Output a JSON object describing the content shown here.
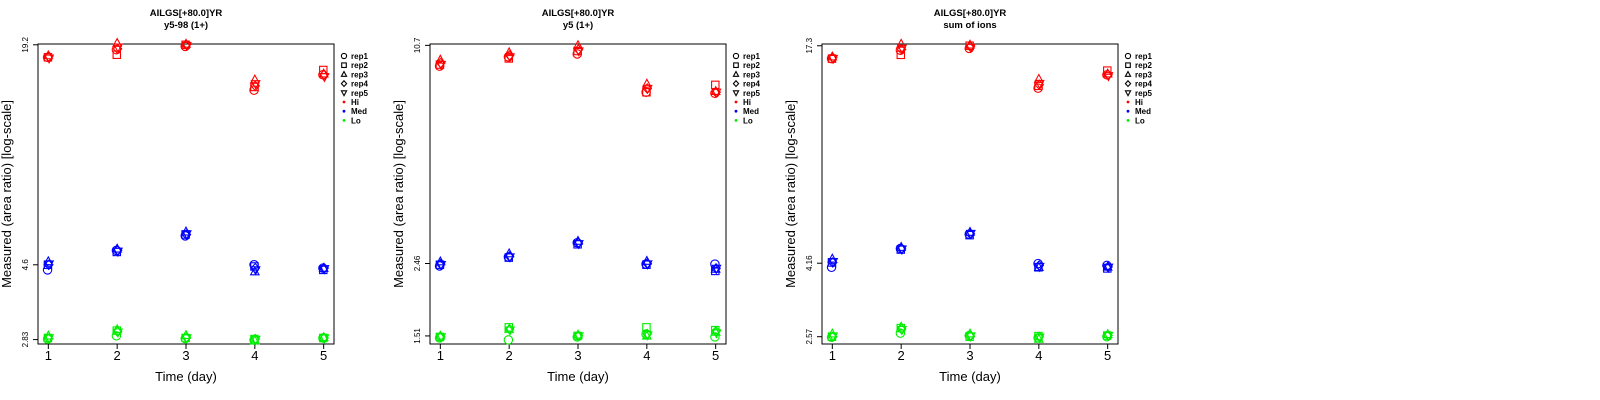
{
  "chart_data": [
    {
      "type": "scatter",
      "title": "AILGS[+80.0]YR",
      "subtitle": "y5-98 (1+)",
      "xlabel": "Time (day)",
      "ylabel": "Measured (area ratio) [log-scale]",
      "yscale": "log",
      "x": [
        1,
        2,
        3,
        4,
        5
      ],
      "xtick_labels": [
        "1",
        "2",
        "3",
        "4",
        "5"
      ],
      "ytick_labels": [
        "2.83",
        "4.6",
        "19.2"
      ],
      "ytick_values": [
        2.83,
        4.6,
        19.2
      ],
      "ylim": [
        2.75,
        19.3
      ],
      "legend": [
        "rep1",
        "rep2",
        "rep3",
        "rep4",
        "rep5",
        "Hi",
        "Med",
        "Lo"
      ],
      "legend_position": "right-outside",
      "colors": {
        "Hi": "#ff0000",
        "Med": "#0000ff",
        "Lo": "#00ee00"
      },
      "series": [
        {
          "level": "Hi",
          "rep": "rep1",
          "values": [
            17.7,
            18.6,
            19.0,
            14.3,
            15.8
          ]
        },
        {
          "level": "Hi",
          "rep": "rep2",
          "values": [
            17.7,
            18.0,
            19.2,
            14.6,
            16.3
          ]
        },
        {
          "level": "Hi",
          "rep": "rep3",
          "values": [
            17.9,
            19.4,
            19.3,
            15.3,
            15.9
          ]
        },
        {
          "level": "Hi",
          "rep": "rep4",
          "values": [
            17.8,
            18.7,
            19.2,
            14.7,
            15.8
          ]
        },
        {
          "level": "Hi",
          "rep": "rep5",
          "values": [
            17.6,
            18.9,
            19.1,
            14.9,
            15.6
          ]
        },
        {
          "level": "Med",
          "rep": "rep1",
          "values": [
            4.45,
            5.05,
            5.55,
            4.6,
            4.5
          ]
        },
        {
          "level": "Med",
          "rep": "rep2",
          "values": [
            4.6,
            5.0,
            5.6,
            4.55,
            4.45
          ]
        },
        {
          "level": "Med",
          "rep": "rep3",
          "values": [
            4.7,
            5.1,
            5.7,
            4.4,
            4.5
          ]
        },
        {
          "level": "Med",
          "rep": "rep4",
          "values": [
            4.6,
            5.05,
            5.6,
            4.5,
            4.5
          ]
        },
        {
          "level": "Med",
          "rep": "rep5",
          "values": [
            4.62,
            5.02,
            5.62,
            4.45,
            4.48
          ]
        },
        {
          "level": "Lo",
          "rep": "rep1",
          "values": [
            2.84,
            2.9,
            2.85,
            2.82,
            2.86
          ]
        },
        {
          "level": "Lo",
          "rep": "rep2",
          "values": [
            2.86,
            3.0,
            2.86,
            2.84,
            2.86
          ]
        },
        {
          "level": "Lo",
          "rep": "rep3",
          "values": [
            2.9,
            3.02,
            2.91,
            2.81,
            2.87
          ]
        },
        {
          "level": "Lo",
          "rep": "rep4",
          "values": [
            2.85,
            2.98,
            2.87,
            2.84,
            2.86
          ]
        },
        {
          "level": "Lo",
          "rep": "rep5",
          "values": [
            2.86,
            2.97,
            2.86,
            2.83,
            2.86
          ]
        }
      ]
    },
    {
      "type": "scatter",
      "title": "AILGS[+80.0]YR",
      "subtitle": "y5 (1+)",
      "xlabel": "Time (day)",
      "ylabel": "Measured (area ratio) [log-scale]",
      "yscale": "log",
      "x": [
        1,
        2,
        3,
        4,
        5
      ],
      "xtick_labels": [
        "1",
        "2",
        "3",
        "4",
        "5"
      ],
      "ytick_labels": [
        "1.51",
        "2.46",
        "10.7"
      ],
      "ytick_values": [
        1.51,
        2.46,
        10.7
      ],
      "ylim": [
        1.43,
        10.8
      ],
      "legend": [
        "rep1",
        "rep2",
        "rep3",
        "rep4",
        "rep5",
        "Hi",
        "Med",
        "Lo"
      ],
      "legend_position": "right-outside",
      "colors": {
        "Hi": "#ff0000",
        "Med": "#0000ff",
        "Lo": "#00ee00"
      },
      "series": [
        {
          "level": "Hi",
          "rep": "rep1",
          "values": [
            9.3,
            9.9,
            10.1,
            7.8,
            7.75
          ]
        },
        {
          "level": "Hi",
          "rep": "rep2",
          "values": [
            9.4,
            9.8,
            10.3,
            7.8,
            8.2
          ]
        },
        {
          "level": "Hi",
          "rep": "rep3",
          "values": [
            9.7,
            10.2,
            10.7,
            8.25,
            7.85
          ]
        },
        {
          "level": "Hi",
          "rep": "rep4",
          "values": [
            9.5,
            10.0,
            10.4,
            8.0,
            7.8
          ]
        },
        {
          "level": "Hi",
          "rep": "rep5",
          "values": [
            9.4,
            9.9,
            10.3,
            8.0,
            7.8
          ]
        },
        {
          "level": "Med",
          "rep": "rep1",
          "values": [
            2.42,
            2.57,
            2.83,
            2.45,
            2.45
          ]
        },
        {
          "level": "Med",
          "rep": "rep2",
          "values": [
            2.44,
            2.56,
            2.8,
            2.44,
            2.34
          ]
        },
        {
          "level": "Med",
          "rep": "rep3",
          "values": [
            2.49,
            2.63,
            2.86,
            2.5,
            2.37
          ]
        },
        {
          "level": "Med",
          "rep": "rep4",
          "values": [
            2.45,
            2.58,
            2.82,
            2.46,
            2.38
          ]
        },
        {
          "level": "Med",
          "rep": "rep5",
          "values": [
            2.44,
            2.57,
            2.81,
            2.45,
            2.38
          ]
        },
        {
          "level": "Lo",
          "rep": "rep1",
          "values": [
            1.49,
            1.47,
            1.5,
            1.53,
            1.5
          ]
        },
        {
          "level": "Lo",
          "rep": "rep2",
          "values": [
            1.5,
            1.6,
            1.51,
            1.6,
            1.57
          ]
        },
        {
          "level": "Lo",
          "rep": "rep3",
          "values": [
            1.51,
            1.58,
            1.52,
            1.51,
            1.55
          ]
        },
        {
          "level": "Lo",
          "rep": "rep4",
          "values": [
            1.5,
            1.58,
            1.51,
            1.53,
            1.56
          ]
        },
        {
          "level": "Lo",
          "rep": "rep5",
          "values": [
            1.5,
            1.57,
            1.51,
            1.52,
            1.54
          ]
        }
      ]
    },
    {
      "type": "scatter",
      "title": "AILGS[+80.0]YR",
      "subtitle": "sum of ions",
      "xlabel": "Time (day)",
      "ylabel": "Measured (area ratio) [log-scale]",
      "yscale": "log",
      "x": [
        1,
        2,
        3,
        4,
        5
      ],
      "xtick_labels": [
        "1",
        "2",
        "3",
        "4",
        "5"
      ],
      "ytick_labels": [
        "2.57",
        "4.16",
        "17.3"
      ],
      "ytick_values": [
        2.57,
        4.16,
        17.3
      ],
      "ylim": [
        2.45,
        17.5
      ],
      "legend": [
        "rep1",
        "rep2",
        "rep3",
        "rep4",
        "rep5",
        "Hi",
        "Med",
        "Lo"
      ],
      "legend_position": "right-outside",
      "colors": {
        "Hi": "#ff0000",
        "Med": "#0000ff",
        "Lo": "#00ee00"
      },
      "series": [
        {
          "level": "Hi",
          "rep": "rep1",
          "values": [
            15.9,
            16.8,
            17.0,
            13.1,
            14.3
          ]
        },
        {
          "level": "Hi",
          "rep": "rep2",
          "values": [
            15.9,
            16.3,
            17.3,
            13.3,
            14.7
          ]
        },
        {
          "level": "Hi",
          "rep": "rep3",
          "values": [
            16.1,
            17.5,
            17.4,
            13.9,
            14.4
          ]
        },
        {
          "level": "Hi",
          "rep": "rep4",
          "values": [
            16.0,
            16.9,
            17.2,
            13.4,
            14.3
          ]
        },
        {
          "level": "Hi",
          "rep": "rep5",
          "values": [
            15.9,
            17.0,
            17.1,
            13.5,
            14.2
          ]
        },
        {
          "level": "Med",
          "rep": "rep1",
          "values": [
            4.05,
            4.58,
            5.03,
            4.15,
            4.1
          ]
        },
        {
          "level": "Med",
          "rep": "rep2",
          "values": [
            4.18,
            4.55,
            5.0,
            4.05,
            4.02
          ]
        },
        {
          "level": "Med",
          "rep": "rep3",
          "values": [
            4.28,
            4.62,
            5.1,
            4.05,
            4.06
          ]
        },
        {
          "level": "Med",
          "rep": "rep4",
          "values": [
            4.18,
            4.57,
            5.04,
            4.1,
            4.06
          ]
        },
        {
          "level": "Med",
          "rep": "rep5",
          "values": [
            4.2,
            4.56,
            5.05,
            4.07,
            4.05
          ]
        },
        {
          "level": "Lo",
          "rep": "rep1",
          "values": [
            2.56,
            2.63,
            2.59,
            2.55,
            2.57
          ]
        },
        {
          "level": "Lo",
          "rep": "rep2",
          "values": [
            2.57,
            2.72,
            2.57,
            2.58,
            2.59
          ]
        },
        {
          "level": "Lo",
          "rep": "rep3",
          "values": [
            2.62,
            2.74,
            2.62,
            2.53,
            2.61
          ]
        },
        {
          "level": "Lo",
          "rep": "rep4",
          "values": [
            2.57,
            2.7,
            2.58,
            2.57,
            2.59
          ]
        },
        {
          "level": "Lo",
          "rep": "rep5",
          "values": [
            2.58,
            2.69,
            2.58,
            2.56,
            2.59
          ]
        }
      ]
    }
  ]
}
